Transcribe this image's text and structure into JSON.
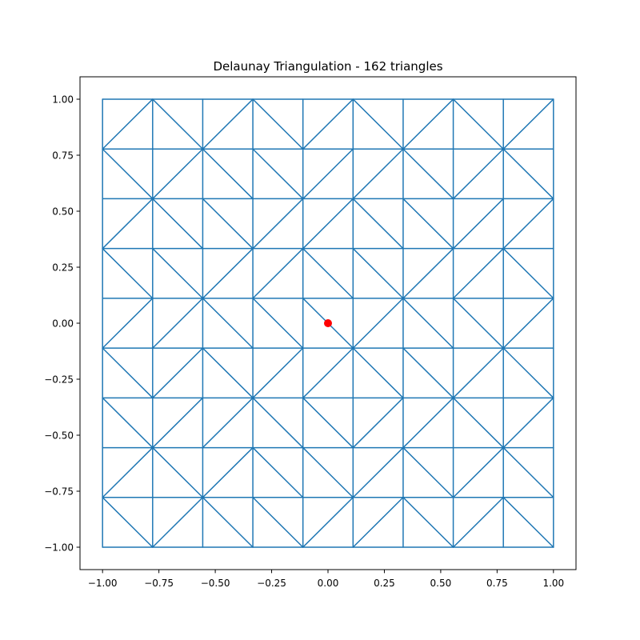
{
  "chart_data": {
    "type": "line",
    "title": "Delaunay Triangulation - 162 triangles",
    "xlabel": "",
    "ylabel": "",
    "xlim": [
      -1.1,
      1.1
    ],
    "ylim": [
      -1.1,
      1.1
    ],
    "grid": false,
    "line_color": "#1f77b4",
    "marker_color": "#ff0000",
    "grid_points": [
      -1.0,
      -0.7778,
      -0.5556,
      -0.3333,
      -0.1111,
      0.1111,
      0.3333,
      0.5556,
      0.7778,
      1.0
    ],
    "highlight_point": {
      "x": 0.0,
      "y": 0.0
    },
    "highlight_link": [
      [
        -0.1111,
        0.1111
      ],
      [
        0.0,
        0.0
      ],
      [
        0.1111,
        -0.1111
      ]
    ],
    "diagonal_pattern_rows_top_to_bottom": [
      "ADADADADA",
      "DADDAADAD",
      "ADDAADDAA",
      "DDAADDAAD",
      "AADDAADDA",
      "DADAADDAD",
      "DAADDAADA",
      "ADADDADAD",
      "DADDAADAD"
    ],
    "pattern_note": "A = diagonal from lower-left to upper-right, D = diagonal from upper-left to lower-right, per grid cell; row 5 column 5 cell is split at the highlighted point",
    "xticks": [
      "−1.00",
      "−0.75",
      "−0.50",
      "−0.25",
      "0.00",
      "0.25",
      "0.50",
      "0.75",
      "1.00"
    ],
    "xtick_values": [
      -1.0,
      -0.75,
      -0.5,
      -0.25,
      0.0,
      0.25,
      0.5,
      0.75,
      1.0
    ],
    "yticks": [
      "−1.00",
      "−0.75",
      "−0.50",
      "−0.25",
      "0.00",
      "0.25",
      "0.50",
      "0.75",
      "1.00"
    ],
    "ytick_values": [
      -1.0,
      -0.75,
      -0.5,
      -0.25,
      0.0,
      0.25,
      0.5,
      0.75,
      1.0
    ]
  }
}
